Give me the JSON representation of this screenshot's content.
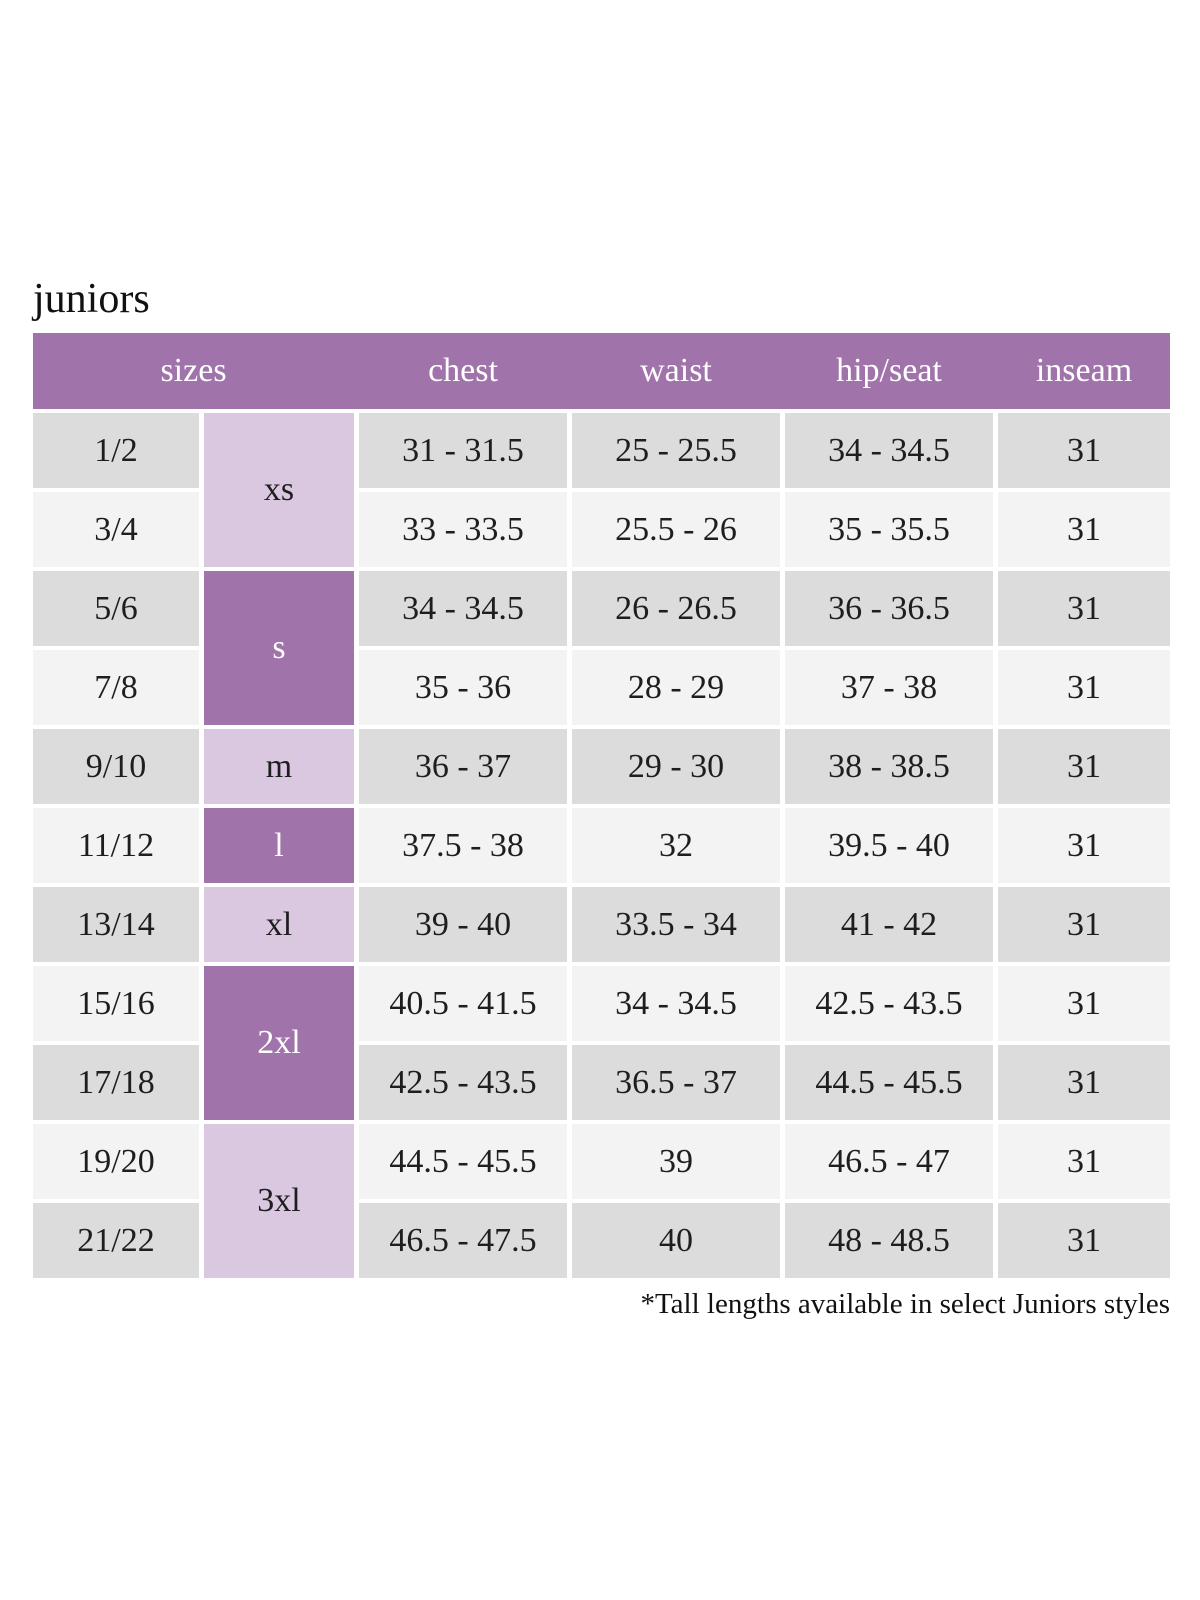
{
  "title": "juniors",
  "footnote": "*Tall lengths available in select Juniors styles",
  "colors": {
    "header_bg": "#a173ab",
    "letter_dark_bg": "#a173ab",
    "letter_dark_text": "#ffffff",
    "letter_light_bg": "#d9c8e0",
    "letter_light_text": "#1e1e1e",
    "row_gray": "#dcdcdc",
    "row_light": "#f3f3f3",
    "header_text": "#ffffff",
    "body_text": "#1e1e1e"
  },
  "table": {
    "headers": [
      "sizes",
      "chest",
      "waist",
      "hip/seat",
      "inseam"
    ],
    "size_groups": [
      {
        "letter": "xs",
        "shade": "light",
        "rows": [
          {
            "size": "1/2",
            "chest": "31 - 31.5",
            "waist": "25 - 25.5",
            "hip_seat": "34 - 34.5",
            "inseam": "31"
          },
          {
            "size": "3/4",
            "chest": "33 - 33.5",
            "waist": "25.5 - 26",
            "hip_seat": "35 - 35.5",
            "inseam": "31"
          }
        ]
      },
      {
        "letter": "s",
        "shade": "dark",
        "rows": [
          {
            "size": "5/6",
            "chest": "34 - 34.5",
            "waist": "26 - 26.5",
            "hip_seat": "36 - 36.5",
            "inseam": "31"
          },
          {
            "size": "7/8",
            "chest": "35 - 36",
            "waist": "28 - 29",
            "hip_seat": "37 - 38",
            "inseam": "31"
          }
        ]
      },
      {
        "letter": "m",
        "shade": "light",
        "rows": [
          {
            "size": "9/10",
            "chest": "36 - 37",
            "waist": "29 - 30",
            "hip_seat": "38 - 38.5",
            "inseam": "31"
          }
        ]
      },
      {
        "letter": "l",
        "shade": "dark",
        "rows": [
          {
            "size": "11/12",
            "chest": "37.5 - 38",
            "waist": "32",
            "hip_seat": "39.5 - 40",
            "inseam": "31"
          }
        ]
      },
      {
        "letter": "xl",
        "shade": "light",
        "rows": [
          {
            "size": "13/14",
            "chest": "39 - 40",
            "waist": "33.5 - 34",
            "hip_seat": "41 - 42",
            "inseam": "31"
          }
        ]
      },
      {
        "letter": "2xl",
        "shade": "dark",
        "rows": [
          {
            "size": "15/16",
            "chest": "40.5 - 41.5",
            "waist": "34 - 34.5",
            "hip_seat": "42.5 - 43.5",
            "inseam": "31"
          },
          {
            "size": "17/18",
            "chest": "42.5 - 43.5",
            "waist": "36.5 - 37",
            "hip_seat": "44.5 - 45.5",
            "inseam": "31"
          }
        ]
      },
      {
        "letter": "3xl",
        "shade": "light",
        "rows": [
          {
            "size": "19/20",
            "chest": "44.5 - 45.5",
            "waist": "39",
            "hip_seat": "46.5 - 47",
            "inseam": "31"
          },
          {
            "size": "21/22",
            "chest": "46.5 - 47.5",
            "waist": "40",
            "hip_seat": "48 - 48.5",
            "inseam": "31"
          }
        ]
      }
    ]
  }
}
